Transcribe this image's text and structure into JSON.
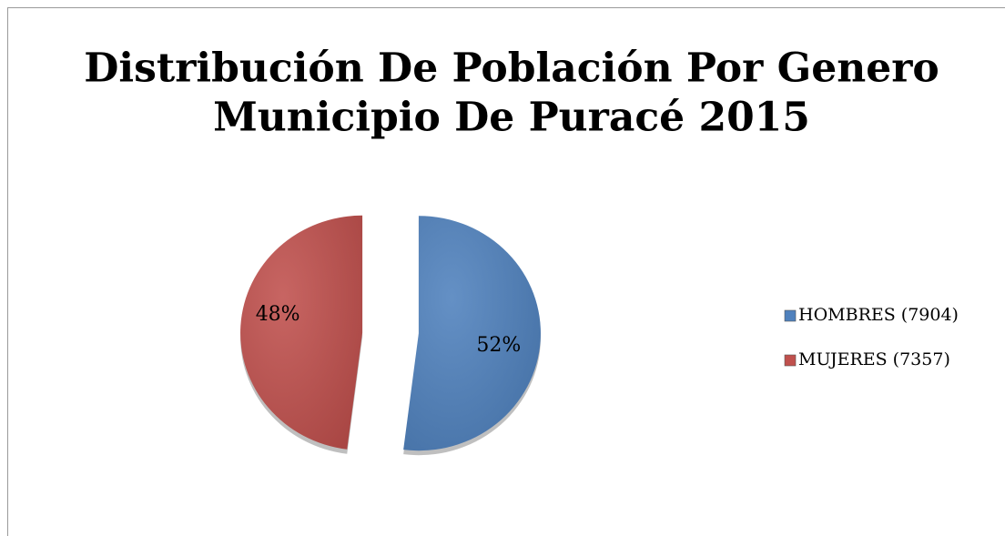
{
  "chart_data": {
    "type": "pie",
    "title": [
      "Distribución De Población Por Genero",
      "Municipio De Puracé 2015"
    ],
    "categories": [
      "HOMBRES (7904)",
      "MUJERES (7357)"
    ],
    "values": [
      52,
      48
    ],
    "value_labels": [
      "52%",
      "48%"
    ],
    "colors": [
      "#4f81bd",
      "#c0504d"
    ],
    "legend": "right"
  }
}
